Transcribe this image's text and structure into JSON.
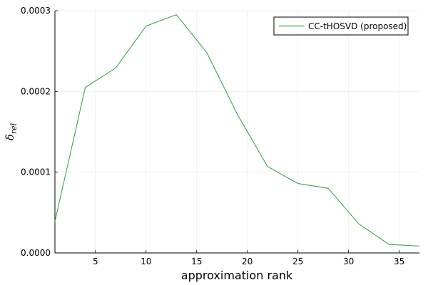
{
  "chart_data": {
    "type": "line",
    "xlabel": "approximation rank",
    "ylabel": "δ",
    "ylabel_subscript": "rel",
    "xlim": [
      1,
      37
    ],
    "ylim": [
      0,
      0.0003
    ],
    "x_ticks": [
      5,
      10,
      15,
      20,
      25,
      30,
      35
    ],
    "y_ticks": [
      0,
      0.0001,
      0.0002,
      0.0003
    ],
    "y_tick_labels": [
      "0.0000",
      "0.0001",
      "0.0002",
      "0.0003"
    ],
    "grid": true,
    "legend_position": "top-right",
    "series": [
      {
        "name": "CC-tHOSVD (proposed)",
        "color": "#3da44d",
        "x": [
          1,
          4,
          7,
          10,
          13,
          16,
          19,
          22,
          25,
          28,
          31,
          34,
          37
        ],
        "y": [
          3.9e-05,
          0.000205,
          0.000229,
          0.000281,
          0.000295,
          0.000248,
          0.000172,
          0.000107,
          8.6e-05,
          8e-05,
          3.6e-05,
          1.05e-05,
          8.5e-06
        ]
      }
    ]
  }
}
